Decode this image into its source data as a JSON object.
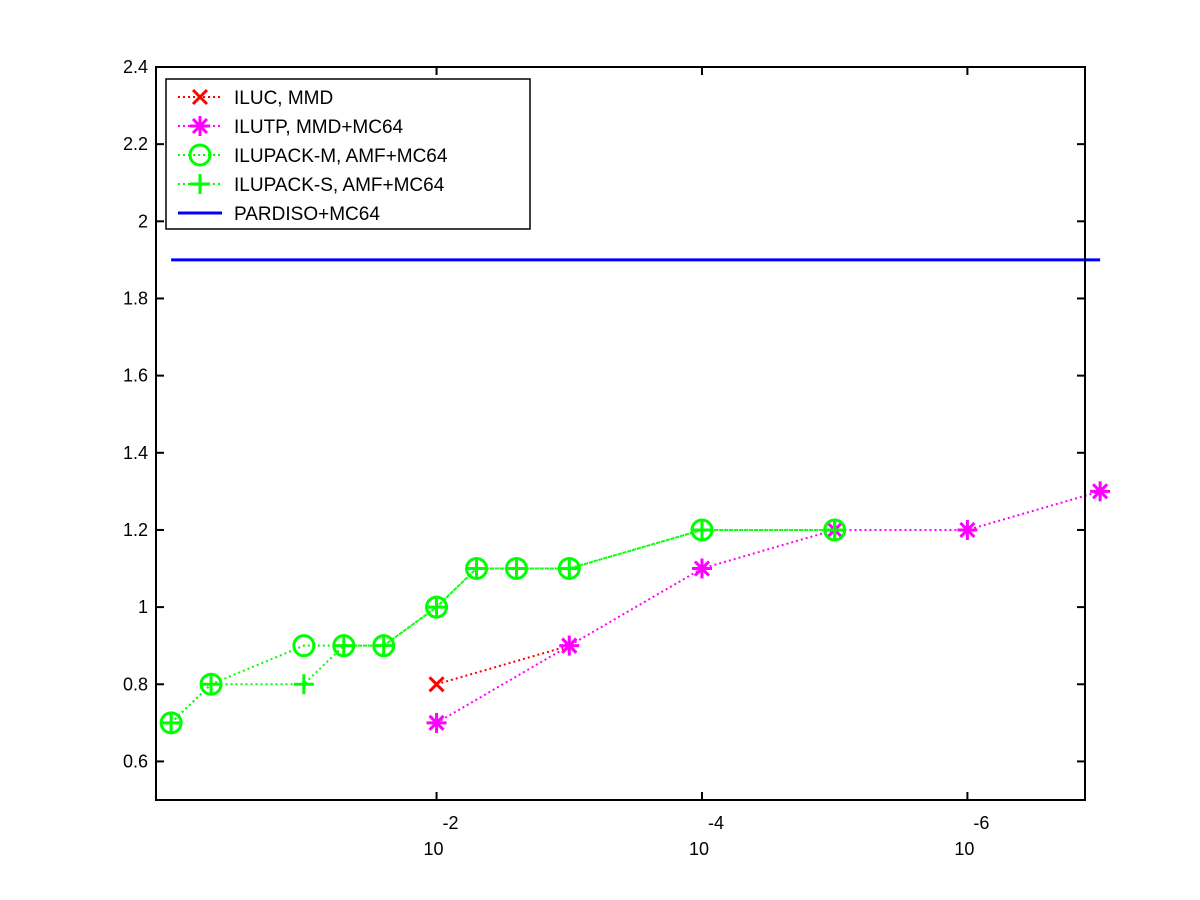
{
  "chart_data": {
    "type": "line",
    "title": "",
    "xlabel": "",
    "ylabel": "",
    "x_scale": "log-reversed",
    "xlim": [
      1.3,
      1.3e-07
    ],
    "ylim": [
      0.5,
      2.4
    ],
    "grid": false,
    "legend_position": "top-left",
    "y_ticks": [
      {
        "value": 0.6,
        "label": "0.6"
      },
      {
        "value": 0.8,
        "label": "0.8"
      },
      {
        "value": 1.0,
        "label": "1"
      },
      {
        "value": 1.2,
        "label": "1.2"
      },
      {
        "value": 1.4,
        "label": "1.4"
      },
      {
        "value": 1.6,
        "label": "1.6"
      },
      {
        "value": 1.8,
        "label": "1.8"
      },
      {
        "value": 2.0,
        "label": "2"
      },
      {
        "value": 2.2,
        "label": "2.2"
      },
      {
        "value": 2.4,
        "label": "2.4"
      }
    ],
    "x_ticks": [
      {
        "value": 0.01,
        "base": "10",
        "exponent": "-2"
      },
      {
        "value": 0.0001,
        "base": "10",
        "exponent": "-4"
      },
      {
        "value": 1e-06,
        "base": "10",
        "exponent": "-6"
      }
    ],
    "series": [
      {
        "name": "ILUC, MMD",
        "color": "#ff0000",
        "marker": "x",
        "line": "dotted",
        "x": [
          0.01,
          0.001
        ],
        "y": [
          0.8,
          0.9
        ]
      },
      {
        "name": "ILUTP, MMD+MC64",
        "color": "#ff00ff",
        "marker": "asterisk",
        "line": "dotted",
        "x": [
          0.01,
          0.001,
          0.0001,
          1e-05,
          1e-06,
          1e-07
        ],
        "y": [
          0.7,
          0.9,
          1.1,
          1.2,
          1.2,
          1.3
        ]
      },
      {
        "name": "ILUPACK-M, AMF+MC64",
        "color": "#00ff00",
        "marker": "circle",
        "line": "dotted",
        "x": [
          1.0,
          0.5,
          0.1,
          0.05,
          0.025,
          0.01,
          0.005,
          0.0025,
          0.001,
          0.0001,
          1e-05
        ],
        "y": [
          0.7,
          0.8,
          0.9,
          0.9,
          0.9,
          1.0,
          1.1,
          1.1,
          1.1,
          1.2,
          1.2
        ]
      },
      {
        "name": "ILUPACK-S, AMF+MC64",
        "color": "#00ff00",
        "marker": "plus",
        "line": "dotted",
        "x": [
          1.0,
          0.5,
          0.1,
          0.05,
          0.025,
          0.01,
          0.005,
          0.0025,
          0.001,
          0.0001,
          1e-05
        ],
        "y": [
          0.7,
          0.8,
          0.8,
          0.9,
          0.9,
          1.0,
          1.1,
          1.1,
          1.1,
          1.2,
          1.2
        ]
      },
      {
        "name": "PARDISO+MC64",
        "color": "#0000ff",
        "marker": "none",
        "line": "solid",
        "x": [
          1.0,
          1e-07
        ],
        "y": [
          1.9,
          1.9
        ]
      }
    ]
  }
}
